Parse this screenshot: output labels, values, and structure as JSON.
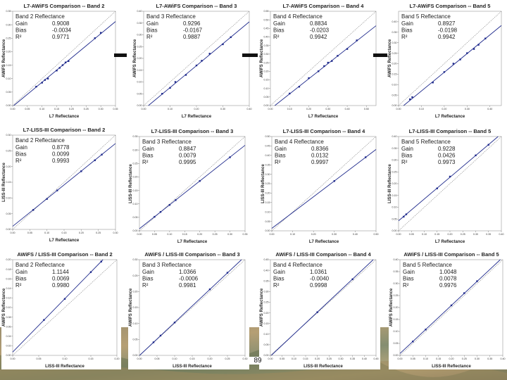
{
  "page": {
    "page_number": "89"
  },
  "separators": [
    "—",
    "—",
    "—"
  ],
  "chart_data": [
    {
      "type": "scatter",
      "title": "L7-AWiFS Comparison -- Band 2",
      "xlabel": "L7 Reflectance",
      "ylabel": "AWiFS Reflectance",
      "xlim": [
        0,
        0.35
      ],
      "ylim": [
        0,
        0.35
      ],
      "xticks": [
        0,
        0.05,
        0.1,
        0.15,
        0.2,
        0.25,
        0.3,
        0.35
      ],
      "yticks": [
        0,
        0.05,
        0.1,
        0.15,
        0.2,
        0.25,
        0.3,
        0.35
      ],
      "stats": {
        "band": "Band 2 Reflectance",
        "gain_label": "Gain",
        "gain": "0.9008",
        "bias_label": "Bias",
        "bias": "-0.0034",
        "r2_label": "R²",
        "r2": "0.9771"
      },
      "points": [
        [
          0.08,
          0.07
        ],
        [
          0.1,
          0.085
        ],
        [
          0.11,
          0.095
        ],
        [
          0.12,
          0.1
        ],
        [
          0.15,
          0.13
        ],
        [
          0.16,
          0.14
        ],
        [
          0.17,
          0.15
        ],
        [
          0.18,
          0.16
        ],
        [
          0.19,
          0.165
        ],
        [
          0.28,
          0.25
        ],
        [
          0.3,
          0.27
        ]
      ]
    },
    {
      "type": "scatter",
      "title": "L7-AWiFS Comparison -- Band 3",
      "xlabel": "L7 Reflectance",
      "ylabel": "AWiFS Reflectance",
      "xlim": [
        0,
        0.4
      ],
      "ylim": [
        0,
        0.4
      ],
      "xticks": [
        0,
        0.1,
        0.2,
        0.3,
        0.4
      ],
      "yticks": [
        0,
        0.05,
        0.1,
        0.15,
        0.2,
        0.25,
        0.3,
        0.35,
        0.4
      ],
      "stats": {
        "band": "Band 3 Reflectance",
        "gain_label": "Gain",
        "gain": "0.9296",
        "bias_label": "Bias",
        "bias": "-0.0167",
        "r2_label": "R²",
        "r2": "0.9887"
      },
      "points": [
        [
          0.07,
          0.05
        ],
        [
          0.1,
          0.075
        ],
        [
          0.12,
          0.1
        ],
        [
          0.16,
          0.13
        ],
        [
          0.2,
          0.17
        ],
        [
          0.22,
          0.19
        ],
        [
          0.25,
          0.22
        ],
        [
          0.3,
          0.26
        ],
        [
          0.33,
          0.29
        ]
      ]
    },
    {
      "type": "scatter",
      "title": "L7-AWiFS Comparison -- Band 4",
      "xlabel": "L7 Reflectance",
      "ylabel": "AWiFS Reflectance",
      "xlim": [
        0,
        0.55
      ],
      "ylim": [
        0,
        0.55
      ],
      "xticks": [
        0,
        0.1,
        0.2,
        0.3,
        0.4,
        0.5
      ],
      "yticks": [
        0,
        0.05,
        0.1,
        0.15,
        0.2,
        0.25,
        0.3,
        0.35,
        0.4,
        0.45,
        0.5,
        0.55
      ],
      "stats": {
        "band": "Band 4 Reflectance",
        "gain_label": "Gain",
        "gain": "0.8834",
        "bias_label": "Bias",
        "bias": "-0.0203",
        "r2_label": "R²",
        "r2": "0.9942"
      },
      "points": [
        [
          0.1,
          0.07
        ],
        [
          0.15,
          0.11
        ],
        [
          0.2,
          0.16
        ],
        [
          0.25,
          0.2
        ],
        [
          0.28,
          0.23
        ],
        [
          0.3,
          0.25
        ],
        [
          0.32,
          0.26
        ],
        [
          0.35,
          0.29
        ],
        [
          0.4,
          0.33
        ],
        [
          0.45,
          0.38
        ]
      ]
    },
    {
      "type": "scatter",
      "title": "L7-AWiFS Comparison -- Band 5",
      "xlabel": "L7 Reflectance",
      "ylabel": "AWiFS Reflectance",
      "xlim": [
        0,
        0.45
      ],
      "ylim": [
        0,
        0.45
      ],
      "xticks": [
        0,
        0.1,
        0.2,
        0.3,
        0.4
      ],
      "yticks": [
        0,
        0.05,
        0.1,
        0.15,
        0.2,
        0.25,
        0.3,
        0.35,
        0.4
      ],
      "stats": {
        "band": "Band 5 Reflectance",
        "gain_label": "Gain",
        "gain": "0.8927",
        "bias_label": "Bias",
        "bias": "-0.0198",
        "r2_label": "R²",
        "r2": "0.9942"
      },
      "points": [
        [
          0.05,
          0.03
        ],
        [
          0.06,
          0.04
        ],
        [
          0.15,
          0.11
        ],
        [
          0.2,
          0.16
        ],
        [
          0.24,
          0.2
        ],
        [
          0.27,
          0.22
        ],
        [
          0.3,
          0.25
        ],
        [
          0.33,
          0.27
        ],
        [
          0.35,
          0.29
        ],
        [
          0.38,
          0.32
        ]
      ]
    },
    {
      "type": "scatter",
      "title": "L7-LISS-III Comparison -- Band 2",
      "xlabel": "L7 Reflectance",
      "ylabel": "LISS-III Reflectance",
      "xlim": [
        0,
        0.3
      ],
      "ylim": [
        0,
        0.3
      ],
      "xticks": [
        0,
        0.05,
        0.1,
        0.15,
        0.2,
        0.25,
        0.3
      ],
      "yticks": [
        0,
        0.05,
        0.1,
        0.15,
        0.2,
        0.25,
        0.3
      ],
      "stats": {
        "band": "Band 2 Reflectance",
        "gain_label": "Gain",
        "gain": "0.8778",
        "bias_label": "Bias",
        "bias": "0.0099",
        "r2_label": "R²",
        "r2": "0.9993"
      },
      "points": [
        [
          0.06,
          0.062
        ],
        [
          0.1,
          0.097
        ],
        [
          0.13,
          0.124
        ],
        [
          0.2,
          0.185
        ],
        [
          0.24,
          0.22
        ],
        [
          0.26,
          0.238
        ]
      ]
    },
    {
      "type": "scatter",
      "title": "L7-LISS-III Comparison -- Band 3",
      "xlabel": "L7 Reflectance",
      "ylabel": "LISS-III Reflectance",
      "xlim": [
        0,
        0.35
      ],
      "ylim": [
        0,
        0.35
      ],
      "xticks": [
        0,
        0.05,
        0.1,
        0.15,
        0.2,
        0.25,
        0.3,
        0.35
      ],
      "yticks": [
        0,
        0.05,
        0.1,
        0.15,
        0.2,
        0.25,
        0.3,
        0.35
      ],
      "stats": {
        "band": "Band 3 Reflectance",
        "gain_label": "Gain",
        "gain": "0.8847",
        "bias_label": "Bias",
        "bias": "0.0079",
        "r2_label": "R²",
        "r2": "0.9995"
      },
      "points": [
        [
          0.05,
          0.052
        ],
        [
          0.07,
          0.07
        ],
        [
          0.1,
          0.096
        ],
        [
          0.12,
          0.114
        ],
        [
          0.2,
          0.185
        ],
        [
          0.3,
          0.273
        ]
      ]
    },
    {
      "type": "scatter",
      "title": "L7-LISS-III Comparison -- Band 4",
      "xlabel": "L7 Reflectance",
      "ylabel": "LISS-III Reflectance",
      "xlim": [
        0,
        0.5
      ],
      "ylim": [
        0,
        0.5
      ],
      "xticks": [
        0,
        0.1,
        0.2,
        0.3,
        0.4,
        0.5
      ],
      "yticks": [
        0,
        0.05,
        0.1,
        0.15,
        0.2,
        0.25,
        0.3,
        0.35,
        0.4,
        0.45,
        0.5
      ],
      "stats": {
        "band": "Band 4 Reflectance",
        "gain_label": "Gain",
        "gain": "0.8366",
        "bias_label": "Bias",
        "bias": "0.0132",
        "r2_label": "R²",
        "r2": "0.9997"
      },
      "points": [
        [
          0.3,
          0.264
        ],
        [
          0.45,
          0.39
        ]
      ]
    },
    {
      "type": "scatter",
      "title": "L7-LISS-III Comparison -- Band 5",
      "xlabel": "L7 Reflectance",
      "ylabel": "LISS-III Reflectance",
      "xlim": [
        0,
        0.4
      ],
      "ylim": [
        0,
        0.4
      ],
      "xticks": [
        0,
        0.05,
        0.1,
        0.15,
        0.2,
        0.25,
        0.3,
        0.35,
        0.4
      ],
      "yticks": [
        0,
        0.05,
        0.1,
        0.15,
        0.2,
        0.25,
        0.3,
        0.35,
        0.4
      ],
      "stats": {
        "band": "Band 5 Reflectance",
        "gain_label": "Gain",
        "gain": "0.9228",
        "bias_label": "Bias",
        "bias": "0.0426",
        "r2_label": "R²",
        "r2": "0.9973"
      },
      "points": [
        [
          0.02,
          0.06
        ],
        [
          0.03,
          0.07
        ],
        [
          0.15,
          0.18
        ],
        [
          0.2,
          0.23
        ],
        [
          0.3,
          0.32
        ],
        [
          0.35,
          0.365
        ]
      ]
    },
    {
      "type": "scatter",
      "title": "AWiFS / LISS-III Comparison -- Band 2",
      "xlabel": "LISS-III Reflectance",
      "ylabel": "AWiFS Reflectance",
      "xlim": [
        0,
        0.2
      ],
      "ylim": [
        0,
        0.2
      ],
      "xticks": [
        0,
        0.05,
        0.1,
        0.15,
        0.2
      ],
      "yticks": [
        0,
        0.02,
        0.04,
        0.06,
        0.08,
        0.1,
        0.12,
        0.14,
        0.16,
        0.18,
        0.2
      ],
      "stats": {
        "band": "Band 2 Reflectance",
        "gain_label": "Gain",
        "gain": "1.1144",
        "bias_label": "Bias",
        "bias": "0.0069",
        "r2_label": "R²",
        "r2": "0.9980"
      },
      "points": [
        [
          0.06,
          0.074
        ],
        [
          0.1,
          0.118
        ],
        [
          0.15,
          0.174
        ],
        [
          0.17,
          0.196
        ]
      ]
    },
    {
      "type": "scatter",
      "title": "AWiFS / LISS-III Comparison -- Band 3",
      "xlabel": "LISS-III Reflectance",
      "ylabel": "AWiFS Reflectance",
      "xlim": [
        0,
        0.3
      ],
      "ylim": [
        0,
        0.3
      ],
      "xticks": [
        0,
        0.05,
        0.1,
        0.15,
        0.2,
        0.25,
        0.3
      ],
      "yticks": [
        0,
        0.05,
        0.1,
        0.15,
        0.2,
        0.25,
        0.3
      ],
      "stats": {
        "band": "Band 3 Reflectance",
        "gain_label": "Gain",
        "gain": "1.0366",
        "bias_label": "Bias",
        "bias": "-0.0006",
        "r2_label": "R²",
        "r2": "0.9981"
      },
      "points": [
        [
          0.04,
          0.041
        ],
        [
          0.06,
          0.062
        ],
        [
          0.1,
          0.103
        ],
        [
          0.2,
          0.207
        ],
        [
          0.25,
          0.259
        ]
      ]
    },
    {
      "type": "scatter",
      "title": "AWiFS / LISS-III Comparison -- Band 4",
      "xlabel": "LISS-III Reflectance",
      "ylabel": "AWiFS Reflectance",
      "xlim": [
        0,
        0.45
      ],
      "ylim": [
        0,
        0.45
      ],
      "xticks": [
        0,
        0.05,
        0.1,
        0.15,
        0.2,
        0.25,
        0.3,
        0.35,
        0.4,
        0.45
      ],
      "yticks": [
        0,
        0.05,
        0.1,
        0.15,
        0.2,
        0.25,
        0.3,
        0.35,
        0.4,
        0.45
      ],
      "stats": {
        "band": "Band 4 Reflectance",
        "gain_label": "Gain",
        "gain": "1.0361",
        "bias_label": "Bias",
        "bias": "-0.0040",
        "r2_label": "R²",
        "r2": "0.9998"
      },
      "points": [
        [
          0.2,
          0.203
        ],
        [
          0.35,
          0.358
        ]
      ]
    },
    {
      "type": "scatter",
      "title": "AWiFS / LISS-III Comparison -- Band 5",
      "xlabel": "LISS-III Reflectance",
      "ylabel": "AWiFS Reflectance",
      "xlim": [
        0,
        0.4
      ],
      "ylim": [
        0,
        0.4
      ],
      "xticks": [
        0,
        0.05,
        0.1,
        0.15,
        0.2,
        0.25,
        0.3,
        0.35,
        0.4
      ],
      "yticks": [
        0,
        0.05,
        0.1,
        0.15,
        0.2,
        0.25,
        0.3,
        0.35,
        0.4
      ],
      "stats": {
        "band": "Band 5 Reflectance",
        "gain_label": "Gain",
        "gain": "1.0048",
        "bias_label": "Bias",
        "bias": "0.0078",
        "r2_label": "R²",
        "r2": "0.9976"
      },
      "points": [
        [
          0.05,
          0.058
        ],
        [
          0.1,
          0.108
        ],
        [
          0.2,
          0.209
        ],
        [
          0.25,
          0.26
        ],
        [
          0.3,
          0.31
        ]
      ]
    }
  ]
}
